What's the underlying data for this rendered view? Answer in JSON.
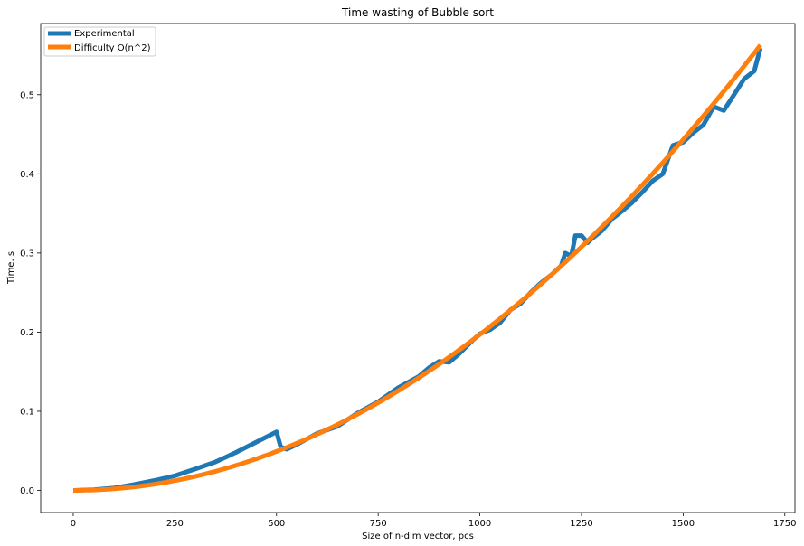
{
  "chart_data": {
    "type": "line",
    "title": "Time wasting of Bubble sort",
    "xlabel": "Size of n-dim vector, pcs",
    "ylabel": "Time, s",
    "xlim": [
      -80,
      1775
    ],
    "ylim": [
      -0.028,
      0.59
    ],
    "x_ticks": [
      0,
      250,
      500,
      750,
      1000,
      1250,
      1500,
      1750
    ],
    "y_ticks": [
      0.0,
      0.1,
      0.2,
      0.3,
      0.4,
      0.5
    ],
    "grid": false,
    "legend_position": "top-left",
    "series": [
      {
        "name": "Experimental",
        "color": "#1f77b4",
        "x": [
          0,
          50,
          100,
          150,
          200,
          250,
          300,
          350,
          400,
          450,
          500,
          510,
          525,
          550,
          575,
          600,
          650,
          700,
          750,
          800,
          850,
          875,
          900,
          925,
          950,
          975,
          1000,
          1025,
          1050,
          1075,
          1100,
          1125,
          1150,
          1175,
          1200,
          1210,
          1225,
          1235,
          1250,
          1265,
          1275,
          1300,
          1325,
          1350,
          1375,
          1400,
          1425,
          1450,
          1475,
          1500,
          1525,
          1550,
          1575,
          1600,
          1625,
          1650,
          1675,
          1690
        ],
        "y": [
          0.0,
          0.0008,
          0.003,
          0.0075,
          0.0125,
          0.0185,
          0.027,
          0.036,
          0.048,
          0.061,
          0.074,
          0.055,
          0.052,
          0.058,
          0.065,
          0.072,
          0.081,
          0.098,
          0.112,
          0.13,
          0.144,
          0.155,
          0.163,
          0.162,
          0.173,
          0.186,
          0.198,
          0.203,
          0.212,
          0.228,
          0.236,
          0.25,
          0.262,
          0.272,
          0.284,
          0.3,
          0.296,
          0.322,
          0.322,
          0.313,
          0.318,
          0.328,
          0.343,
          0.353,
          0.364,
          0.377,
          0.391,
          0.4,
          0.436,
          0.44,
          0.452,
          0.462,
          0.485,
          0.48,
          0.5,
          0.52,
          0.53,
          0.559
        ]
      },
      {
        "name": "Difficulty O(n^2)",
        "color": "#ff7f0e",
        "coefficient": 1.97e-07
      }
    ]
  }
}
